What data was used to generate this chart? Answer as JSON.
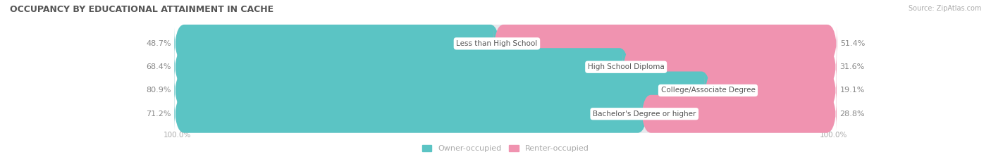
{
  "title": "OCCUPANCY BY EDUCATIONAL ATTAINMENT IN CACHE",
  "source": "Source: ZipAtlas.com",
  "categories": [
    "Less than High School",
    "High School Diploma",
    "College/Associate Degree",
    "Bachelor's Degree or higher"
  ],
  "owner_values": [
    48.7,
    68.4,
    80.9,
    71.2
  ],
  "renter_values": [
    51.4,
    31.6,
    19.1,
    28.8
  ],
  "owner_color": "#5bc4c4",
  "renter_color": "#f093b0",
  "bar_bg_color": "#e8e8ec",
  "center_label_color": "#555555",
  "owner_pct_color": "#888888",
  "renter_pct_color": "#888888",
  "axis_label_color": "#aaaaaa",
  "title_color": "#555555",
  "background_color": "#ffffff",
  "legend_owner": "Owner-occupied",
  "legend_renter": "Renter-occupied",
  "bar_height": 0.62,
  "total_width": 100.0,
  "xlim_left": -15,
  "xlim_right": 115
}
